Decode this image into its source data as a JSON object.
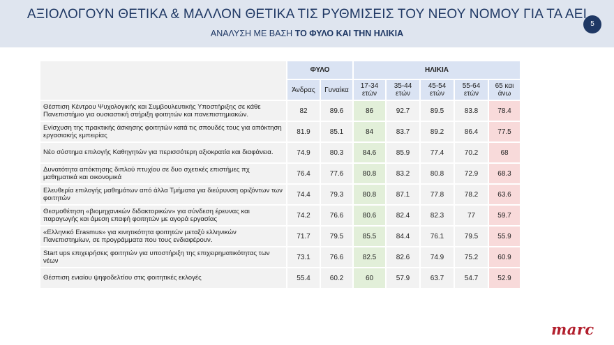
{
  "header": {
    "title": "ΑΞΙΟΛΟΓΟΥΝ ΘΕΤΙΚΑ & ΜΑΛΛΟΝ ΘΕΤΙΚΑ ΤΙΣ ΡΥΘΜΙΣΕΙΣ ΤΟΥ ΝΕΟΥ ΝΟΜΟΥ ΓΙΑ ΤΑ ΑΕΙ",
    "subtitle_prefix": "ΑΝΑΛΥΣΗ ΜΕ ΒΑΣΗ ",
    "subtitle_bold": "ΤΟ ΦΥΛΟ ΚΑΙ ΤΗΝ ΗΛΙΚΙΑ",
    "page_number": "5"
  },
  "table": {
    "groups": {
      "gender": "ΦΥΛΟ",
      "age": "ΗΛΙΚΙΑ"
    },
    "columns": [
      "Άνδρας",
      "Γυναίκα",
      "17-34 ετών",
      "35-44 ετών",
      "45-54 ετών",
      "55-64 ετών",
      "65 και άνω"
    ],
    "highlight_colors": {
      "youngest_age_group": "#e2efd9",
      "oldest_age_group": "#f8dada"
    },
    "rows": [
      {
        "label": "Θέσπιση Κέντρου Ψυχολογικής και Συμβουλευτικής Υποστήριξης σε κάθε Πανεπιστήμιο για ουσιαστική στήριξη φοιτητών και πανεπιστημιακών.",
        "values": [
          "82",
          "89.6",
          "86",
          "92.7",
          "89.5",
          "83.8",
          "78.4"
        ]
      },
      {
        "label": "Ενίσχυση της πρακτικής άσκησης φοιτητών κατά τις σπουδές τους για απόκτηση εργασιακής εμπειρίας",
        "values": [
          "81.9",
          "85.1",
          "84",
          "83.7",
          "89.2",
          "86.4",
          "77.5"
        ]
      },
      {
        "label": "Νέο σύστημα επιλογής Καθηγητών για περισσότερη αξιοκρατία και διαφάνεια.",
        "values": [
          "74.9",
          "80.3",
          "84.6",
          "85.9",
          "77.4",
          "70.2",
          "68"
        ]
      },
      {
        "label": "Δυνατότητα απόκτησης διπλού πτυχίου σε δυο σχετικές επιστήμες πχ μαθηματικά και οικονομικά",
        "values": [
          "76.4",
          "77.6",
          "80.8",
          "83.2",
          "80.8",
          "72.9",
          "68.3"
        ]
      },
      {
        "label": "Ελευθερία επιλογής μαθημάτων από άλλα Τμήματα για διεύρυνση οριζόντων των φοιτητών",
        "values": [
          "74.4",
          "79.3",
          "80.8",
          "87.1",
          "77.8",
          "78.2",
          "63.6"
        ]
      },
      {
        "label": "Θεσμοθέτηση «βιομηχανικών διδακτορικών» για σύνδεση έρευνας και παραγωγής και άμεση επαφή φοιτητών με αγορά εργασίας",
        "values": [
          "74.2",
          "76.6",
          "80.6",
          "82.4",
          "82.3",
          "77",
          "59.7"
        ]
      },
      {
        "label": "«Ελληνικό Erasmus» για κινητικότητα φοιτητών μεταξύ ελληνικών Πανεπιστημίων, σε προγράμματα που τους ενδιαφέρουν.",
        "values": [
          "71.7",
          "79.5",
          "85.5",
          "84.4",
          "76.1",
          "79.5",
          "55.9"
        ]
      },
      {
        "label": "Start ups επιχειρήσεις φοιτητών για υποστήριξη της επιχειρηματικότητας των νέων",
        "values": [
          "73.1",
          "76.6",
          "82.5",
          "82.6",
          "74.9",
          "75.2",
          "60.9"
        ]
      },
      {
        "label": "Θέσπιση ενιαίου ψηφοδελτίου στις φοιτητικές εκλογές",
        "values": [
          "55.4",
          "60.2",
          "60",
          "57.9",
          "63.7",
          "54.7",
          "52.9"
        ]
      }
    ]
  },
  "logo": {
    "text": "marc"
  }
}
